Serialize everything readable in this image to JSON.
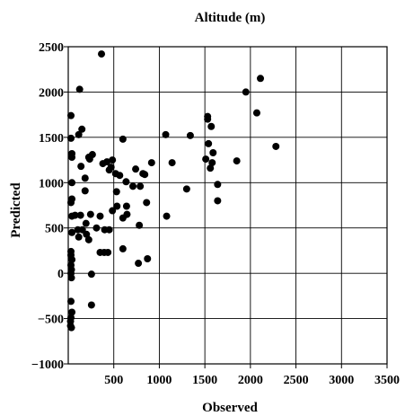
{
  "chart_data": {
    "type": "scatter",
    "title": "Altitude (m)",
    "xlabel": "Observed",
    "ylabel": "Predicted",
    "xlim": [
      0,
      3500
    ],
    "ylim": [
      -1000,
      2500
    ],
    "x_ticks": [
      500,
      1000,
      1500,
      2000,
      2500,
      3000,
      3500
    ],
    "y_ticks": [
      2500,
      2000,
      1500,
      1000,
      500,
      0,
      -500,
      -1000
    ],
    "x_tick_labels": [
      "500",
      "1000",
      "1500",
      "2000",
      "2500",
      "3000",
      "3500"
    ],
    "y_tick_labels": [
      "2500",
      "2000",
      "1500",
      "1000",
      "500",
      "0",
      "−500",
      "−1000"
    ],
    "grid": true,
    "points": [
      [
        365,
        2420
      ],
      [
        125,
        2030
      ],
      [
        30,
        1740
      ],
      [
        150,
        1590
      ],
      [
        115,
        1530
      ],
      [
        30,
        1490
      ],
      [
        40,
        1320
      ],
      [
        40,
        1280
      ],
      [
        265,
        1310
      ],
      [
        225,
        1280
      ],
      [
        235,
        1260
      ],
      [
        140,
        1180
      ],
      [
        380,
        1210
      ],
      [
        425,
        1230
      ],
      [
        485,
        1250
      ],
      [
        470,
        1170
      ],
      [
        520,
        1100
      ],
      [
        565,
        1080
      ],
      [
        450,
        1140
      ],
      [
        600,
        1480
      ],
      [
        185,
        1050
      ],
      [
        185,
        910
      ],
      [
        530,
        900
      ],
      [
        40,
        1000
      ],
      [
        40,
        820
      ],
      [
        30,
        780
      ],
      [
        40,
        630
      ],
      [
        75,
        640
      ],
      [
        135,
        640
      ],
      [
        245,
        650
      ],
      [
        350,
        630
      ],
      [
        400,
        480
      ],
      [
        310,
        500
      ],
      [
        105,
        480
      ],
      [
        40,
        450
      ],
      [
        155,
        480
      ],
      [
        195,
        550
      ],
      [
        200,
        430
      ],
      [
        115,
        400
      ],
      [
        225,
        370
      ],
      [
        450,
        480
      ],
      [
        485,
        690
      ],
      [
        535,
        740
      ],
      [
        635,
        1010
      ],
      [
        640,
        740
      ],
      [
        645,
        650
      ],
      [
        600,
        610
      ],
      [
        710,
        960
      ],
      [
        740,
        1150
      ],
      [
        790,
        960
      ],
      [
        820,
        1100
      ],
      [
        840,
        1090
      ],
      [
        860,
        780
      ],
      [
        915,
        1220
      ],
      [
        1070,
        1530
      ],
      [
        1140,
        1220
      ],
      [
        1340,
        1520
      ],
      [
        1300,
        930
      ],
      [
        1080,
        630
      ],
      [
        600,
        270
      ],
      [
        780,
        530
      ],
      [
        770,
        110
      ],
      [
        870,
        160
      ],
      [
        435,
        230
      ],
      [
        395,
        230
      ],
      [
        350,
        230
      ],
      [
        30,
        240
      ],
      [
        30,
        200
      ],
      [
        40,
        150
      ],
      [
        30,
        90
      ],
      [
        35,
        40
      ],
      [
        30,
        0
      ],
      [
        35,
        -50
      ],
      [
        255,
        -10
      ],
      [
        255,
        -350
      ],
      [
        30,
        -310
      ],
      [
        40,
        -430
      ],
      [
        30,
        -490
      ],
      [
        25,
        -530
      ],
      [
        25,
        -580
      ],
      [
        35,
        -600
      ],
      [
        1530,
        1730
      ],
      [
        1530,
        1700
      ],
      [
        1540,
        1430
      ],
      [
        1570,
        1620
      ],
      [
        1590,
        1330
      ],
      [
        1580,
        1220
      ],
      [
        1560,
        1160
      ],
      [
        1510,
        1260
      ],
      [
        1640,
        980
      ],
      [
        1640,
        800
      ],
      [
        1850,
        1240
      ],
      [
        1950,
        2000
      ],
      [
        2070,
        1770
      ],
      [
        2110,
        2150
      ],
      [
        2280,
        1400
      ]
    ]
  }
}
